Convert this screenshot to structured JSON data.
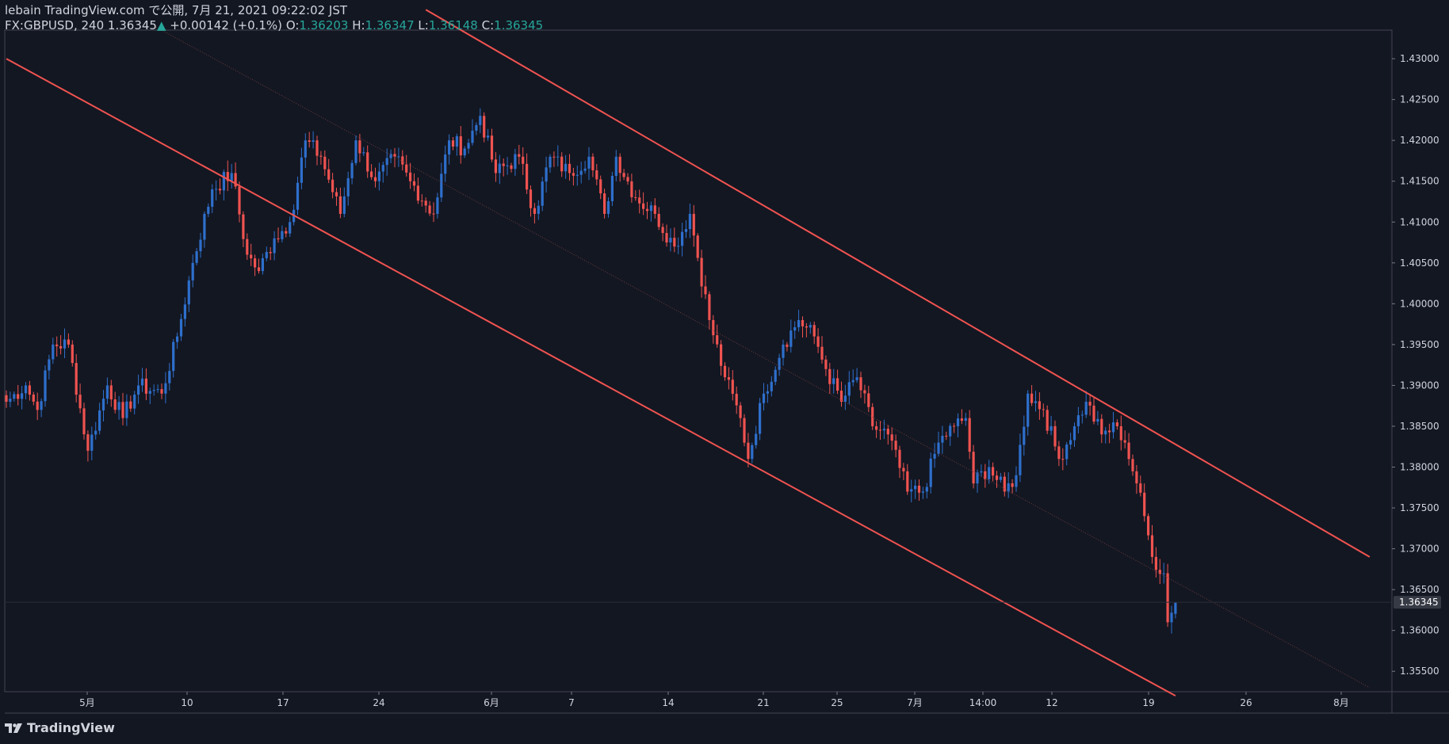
{
  "header": {
    "publish_line": "lebain TradingView.com で公開, 7月 21, 2021 09:22:02 JST",
    "symbol": "FX:GBPUSD, 240",
    "last": "1.36345",
    "change_arrow": "▲",
    "change": "+0.00142 (+0.1%)",
    "o_label": "O:",
    "o_value": "1.36203",
    "h_label": "H:",
    "h_value": "1.36347",
    "l_label": "L:",
    "l_value": "1.36148",
    "c_label": "C:",
    "c_value": "1.36345"
  },
  "footer": {
    "brand": "TradingView"
  },
  "colors": {
    "background": "#131722",
    "up": "#2e6fcc",
    "down": "#ef5350",
    "channel": "#f05350",
    "text": "#d1d4dc",
    "accent": "#26a69a"
  },
  "chart_data": {
    "type": "candlestick",
    "symbol": "FX:GBPUSD",
    "interval": "240",
    "ylim": [
      1.3525,
      1.4335
    ],
    "y_ticks": [
      "1.43000",
      "1.42500",
      "1.42000",
      "1.41500",
      "1.41000",
      "1.40500",
      "1.40000",
      "1.39500",
      "1.39000",
      "1.38500",
      "1.38000",
      "1.37500",
      "1.37000",
      "1.36500",
      "1.36000",
      "1.35500"
    ],
    "x_ticks": [
      "5月",
      "10",
      "17",
      "24",
      "6月",
      "7",
      "14",
      "21",
      "25",
      "7月",
      "14:00",
      "12",
      "19",
      "26",
      "8月"
    ],
    "last_price_label": "1.36345",
    "anchors": [
      {
        "i": 0,
        "c": 1.388
      },
      {
        "i": 5,
        "c": 1.39
      },
      {
        "i": 8,
        "c": 1.387
      },
      {
        "i": 12,
        "c": 1.395
      },
      {
        "i": 16,
        "c": 1.395
      },
      {
        "i": 21,
        "c": 1.382
      },
      {
        "i": 26,
        "c": 1.39
      },
      {
        "i": 30,
        "c": 1.386
      },
      {
        "i": 34,
        "c": 1.39
      },
      {
        "i": 40,
        "c": 1.389
      },
      {
        "i": 44,
        "c": 1.396
      },
      {
        "i": 48,
        "c": 1.405
      },
      {
        "i": 53,
        "c": 1.414
      },
      {
        "i": 58,
        "c": 1.416
      },
      {
        "i": 62,
        "c": 1.406
      },
      {
        "i": 65,
        "c": 1.404
      },
      {
        "i": 69,
        "c": 1.408
      },
      {
        "i": 73,
        "c": 1.41
      },
      {
        "i": 77,
        "c": 1.42
      },
      {
        "i": 81,
        "c": 1.418
      },
      {
        "i": 86,
        "c": 1.411
      },
      {
        "i": 90,
        "c": 1.42
      },
      {
        "i": 95,
        "c": 1.415
      },
      {
        "i": 100,
        "c": 1.418
      },
      {
        "i": 104,
        "c": 1.415
      },
      {
        "i": 110,
        "c": 1.411
      },
      {
        "i": 114,
        "c": 1.42
      },
      {
        "i": 118,
        "c": 1.419
      },
      {
        "i": 122,
        "c": 1.423
      },
      {
        "i": 126,
        "c": 1.416
      },
      {
        "i": 132,
        "c": 1.418
      },
      {
        "i": 136,
        "c": 1.411
      },
      {
        "i": 140,
        "c": 1.418
      },
      {
        "i": 145,
        "c": 1.416
      },
      {
        "i": 150,
        "c": 1.418
      },
      {
        "i": 154,
        "c": 1.411
      },
      {
        "i": 157,
        "c": 1.418
      },
      {
        "i": 162,
        "c": 1.413
      },
      {
        "i": 167,
        "c": 1.411
      },
      {
        "i": 172,
        "c": 1.407
      },
      {
        "i": 176,
        "c": 1.411
      },
      {
        "i": 181,
        "c": 1.398
      },
      {
        "i": 185,
        "c": 1.391
      },
      {
        "i": 189,
        "c": 1.386
      },
      {
        "i": 191,
        "c": 1.381
      },
      {
        "i": 195,
        "c": 1.389
      },
      {
        "i": 200,
        "c": 1.395
      },
      {
        "i": 204,
        "c": 1.398
      },
      {
        "i": 208,
        "c": 1.396
      },
      {
        "i": 211,
        "c": 1.392
      },
      {
        "i": 215,
        "c": 1.388
      },
      {
        "i": 219,
        "c": 1.391
      },
      {
        "i": 223,
        "c": 1.385
      },
      {
        "i": 227,
        "c": 1.384
      },
      {
        "i": 232,
        "c": 1.377
      },
      {
        "i": 236,
        "c": 1.377
      },
      {
        "i": 240,
        "c": 1.383
      },
      {
        "i": 244,
        "c": 1.385
      },
      {
        "i": 247,
        "c": 1.386
      },
      {
        "i": 249,
        "c": 1.378
      },
      {
        "i": 253,
        "c": 1.38
      },
      {
        "i": 257,
        "c": 1.377
      },
      {
        "i": 260,
        "c": 1.379
      },
      {
        "i": 263,
        "c": 1.389
      },
      {
        "i": 267,
        "c": 1.387
      },
      {
        "i": 271,
        "c": 1.381
      },
      {
        "i": 275,
        "c": 1.385
      },
      {
        "i": 278,
        "c": 1.388
      },
      {
        "i": 282,
        "c": 1.384
      },
      {
        "i": 286,
        "c": 1.385
      },
      {
        "i": 288,
        "c": 1.383
      },
      {
        "i": 291,
        "c": 1.378
      },
      {
        "i": 293,
        "c": 1.374
      },
      {
        "i": 295,
        "c": 1.369
      },
      {
        "i": 298,
        "c": 1.367
      },
      {
        "i": 299,
        "c": 1.361
      },
      {
        "i": 301,
        "c": 1.3634
      }
    ],
    "channel": {
      "lower": [
        {
          "i": 0,
          "price": 1.43
        },
        {
          "i": 301,
          "price": 1.352
        }
      ],
      "upper": [
        {
          "i": 108,
          "price": 1.436
        },
        {
          "i": 351,
          "price": 1.369
        }
      ],
      "mid_dotted": [
        {
          "i": 38,
          "price": 1.434
        },
        {
          "i": 351,
          "price": 1.353
        }
      ]
    }
  }
}
